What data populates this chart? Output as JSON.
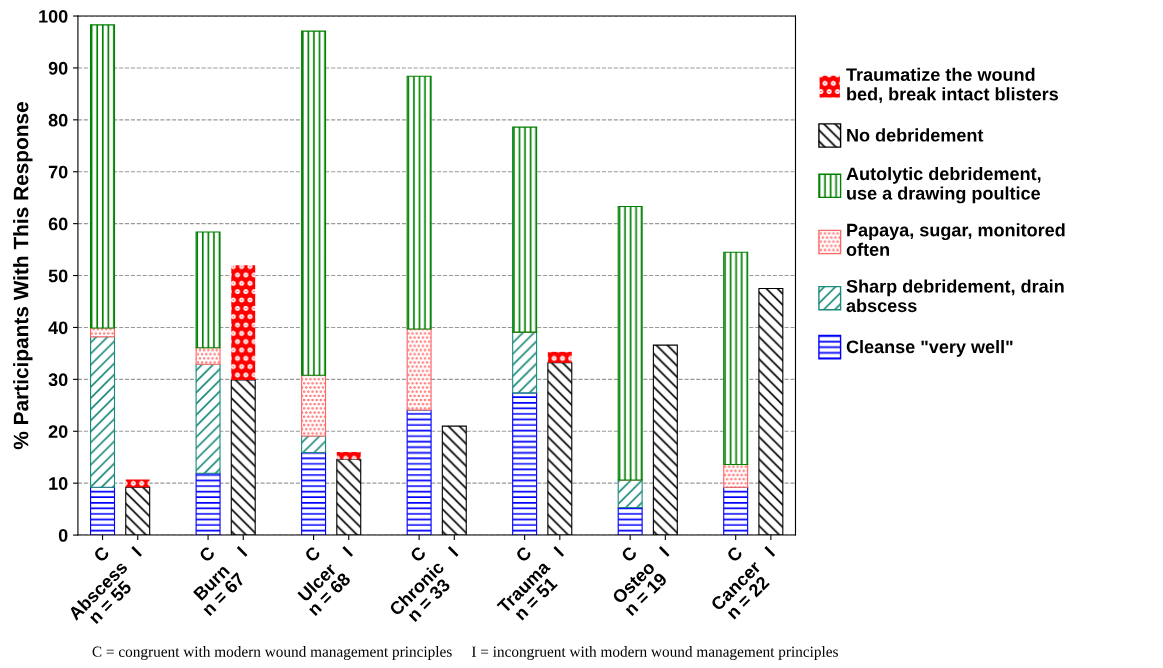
{
  "chart_data": {
    "type": "bar",
    "stacked": true,
    "ylabel": "% Participants With This Response",
    "categories": [
      "C",
      "I",
      null,
      "C",
      "I",
      null,
      "C",
      "I",
      null,
      "C",
      "I",
      null,
      "C",
      "I",
      null,
      "C",
      "I",
      null,
      "C",
      "I"
    ],
    "series": [
      {
        "name": "Cleanse \"very well\"",
        "color": "#0000ff",
        "values": [
          9.2,
          null,
          null,
          11.9,
          null,
          null,
          15.9,
          null,
          null,
          24.1,
          null,
          null,
          27.4,
          null,
          null,
          5.3,
          null,
          null,
          9.2,
          null
        ]
      },
      {
        "name": "Sharp debridement, drain\nabscess",
        "color": "#1a8a7a",
        "values": [
          29,
          null,
          null,
          21,
          null,
          null,
          3.2,
          null,
          null,
          0,
          null,
          null,
          11.7,
          null,
          null,
          5.3,
          null,
          null,
          0,
          null
        ]
      },
      {
        "name": "Papaya, sugar, monitored\noften",
        "color": "#ff6666",
        "values": [
          1.7,
          null,
          null,
          3.2,
          null,
          null,
          11.7,
          null,
          null,
          15.6,
          null,
          null,
          0,
          null,
          null,
          0,
          null,
          null,
          4.4,
          null
        ]
      },
      {
        "name": "Autolytic debridement,\nuse a drawing poultice",
        "color": "#008000",
        "values": [
          58.4,
          null,
          null,
          22.3,
          null,
          null,
          66.3,
          null,
          null,
          48.7,
          null,
          null,
          39.5,
          null,
          null,
          52.7,
          null,
          null,
          40.9,
          null
        ]
      },
      {
        "name": "No debridement",
        "color": "#000000",
        "values": [
          null,
          9.2,
          null,
          null,
          29.9,
          null,
          null,
          14.6,
          null,
          null,
          21,
          null,
          null,
          33.2,
          null,
          null,
          36.6,
          null,
          null,
          47.5
        ]
      },
      {
        "name": "Traumatize the wound\nbed, break intact blisters",
        "color": "#ff0000",
        "values": [
          null,
          1.5,
          null,
          null,
          22.1,
          null,
          null,
          1.4,
          null,
          null,
          0,
          null,
          null,
          2.1,
          null,
          null,
          0,
          null,
          null,
          0
        ]
      }
    ],
    "ylim": [
      0,
      100
    ],
    "yticks": [
      0,
      10,
      20,
      30,
      40,
      50,
      60,
      70,
      80,
      90,
      100
    ],
    "grid": "y",
    "legend": "right",
    "annotations": [
      "Abscess\nn = 55",
      "Burn\nn = 67",
      "Ulcer\nn = 68",
      "Chronic\nn = 33",
      "Trauma\nn = 51",
      "Osteo\nn = 19",
      "Cancer\nn = 22",
      "C = congruent with modern wound management principles     I = incongruent with modern wound management principles"
    ]
  }
}
